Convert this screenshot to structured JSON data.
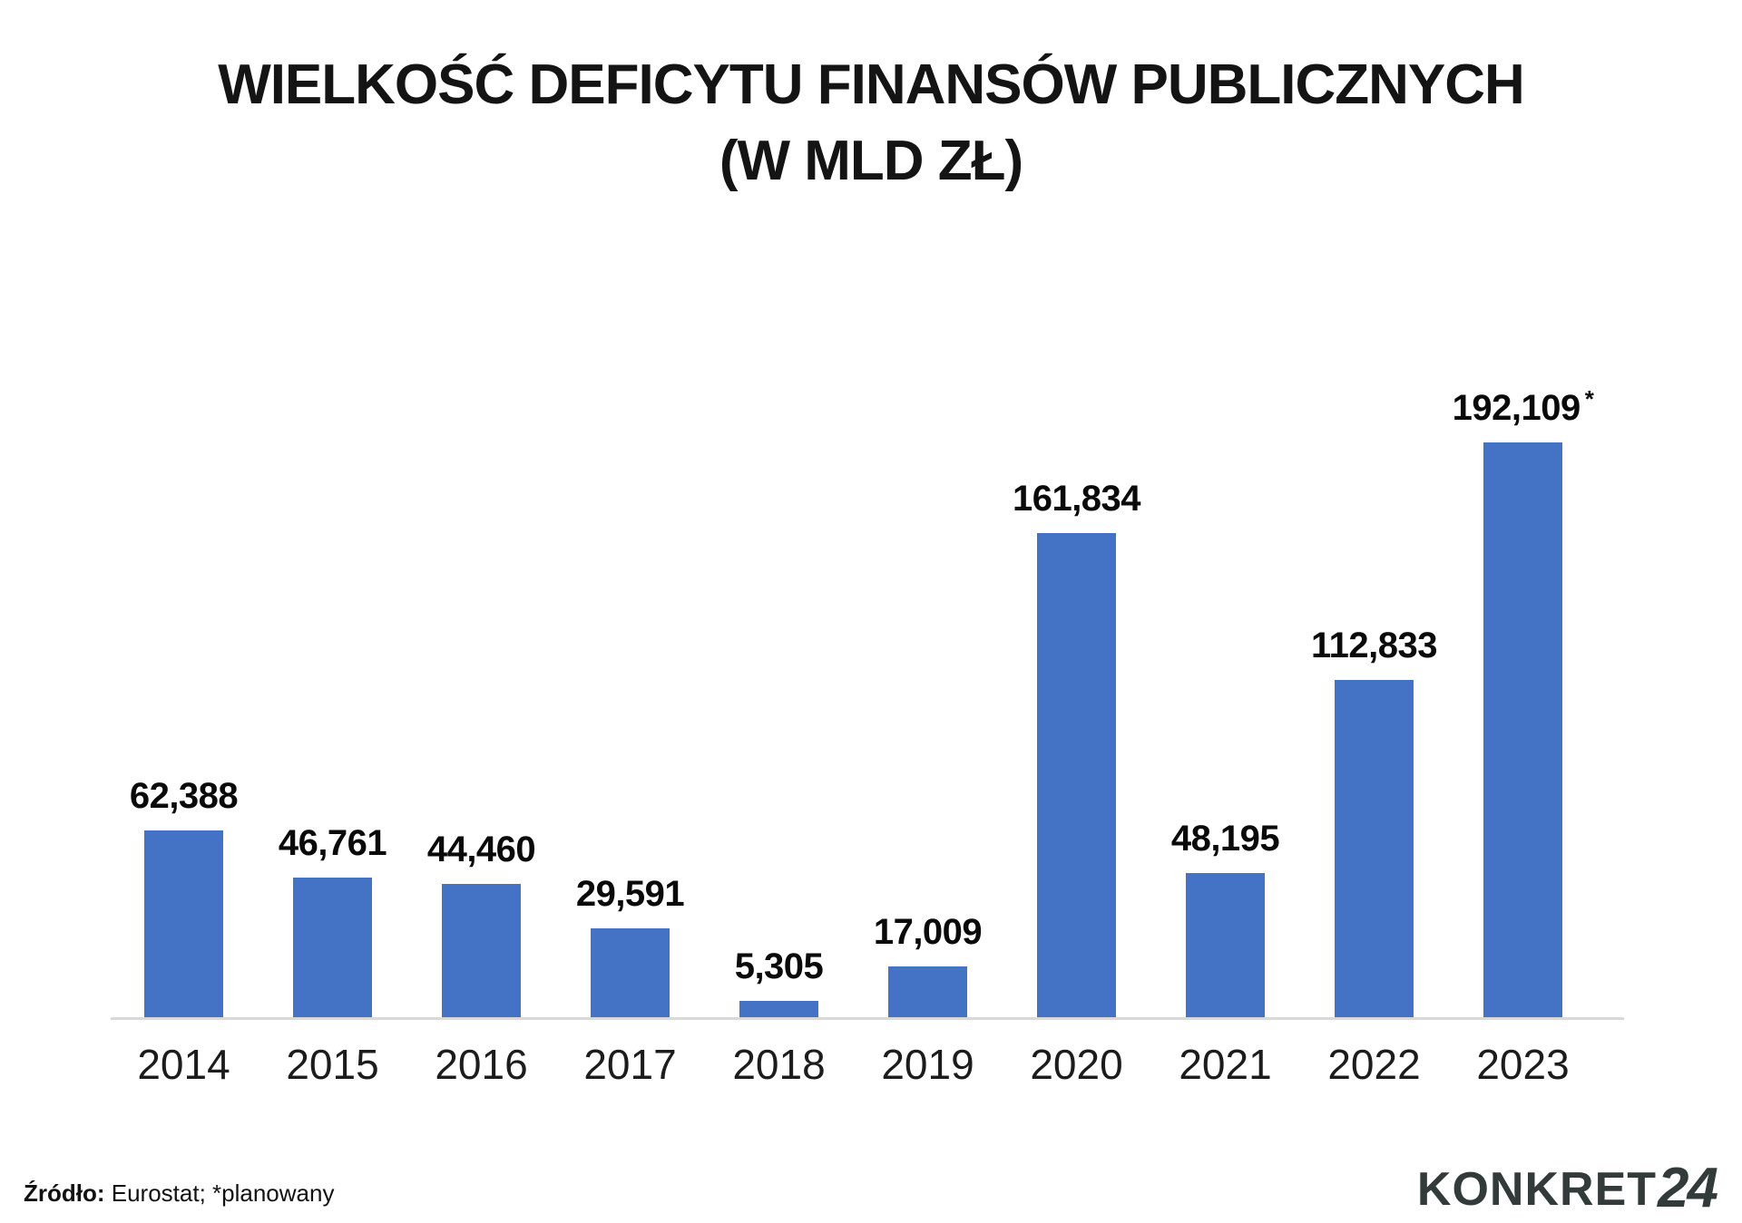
{
  "title": {
    "line1": "WIELKOŚĆ DEFICYTU FINANSÓW PUBLICZNYCH",
    "line2": "(W MLD ZŁ)"
  },
  "source": {
    "label": "Źródło:",
    "text": " Eurostat; *planowany"
  },
  "logo": {
    "word": "KONKRET",
    "number": "24"
  },
  "colors": {
    "bar": "#4473C6",
    "axis": "#d9d9d9",
    "title_text": "#141414",
    "value_text": "#0a0a0a",
    "year_text": "#1c1c1c",
    "logo_text": "#333a3a",
    "background": "#ffffff"
  },
  "chart_data": {
    "type": "bar",
    "title": "WIELKOŚĆ DEFICYTU FINANSÓW PUBLICZNYCH (W MLD ZŁ)",
    "unit": "mld zł",
    "categories": [
      "2014",
      "2015",
      "2016",
      "2017",
      "2018",
      "2019",
      "2020",
      "2021",
      "2022",
      "2023"
    ],
    "values": [
      62.388,
      46.761,
      44.46,
      29.591,
      5.305,
      17.009,
      161.834,
      48.195,
      112.833,
      192.109
    ],
    "value_labels": [
      "62,388",
      "46,761",
      "44,460",
      "29,591",
      "5,305",
      "17,009",
      "161,834",
      "48,195",
      "112,833",
      "192,109"
    ],
    "annotations": [
      "",
      "",
      "",
      "",
      "",
      "",
      "",
      "",
      "",
      "*"
    ],
    "annotation_note": "*planowany",
    "xlabel": "",
    "ylabel": "mld zł",
    "ylim": [
      0,
      200
    ],
    "grid": false,
    "legend": null,
    "baseline_visible": true
  }
}
